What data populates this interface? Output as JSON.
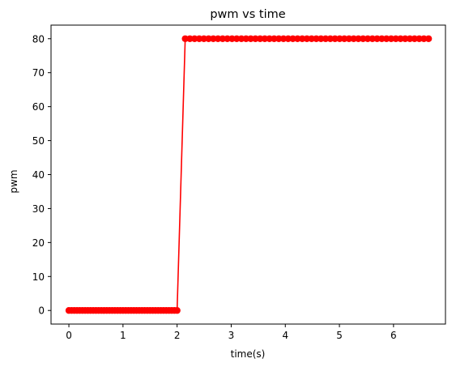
{
  "chart_data": {
    "type": "line",
    "title": "pwm vs time",
    "xlabel": "time(s)",
    "ylabel": "pwm",
    "xlim": [
      -0.33,
      6.96
    ],
    "ylim": [
      -4,
      84
    ],
    "xticks": [
      0,
      1,
      2,
      3,
      4,
      5,
      6
    ],
    "yticks": [
      0,
      10,
      20,
      30,
      40,
      50,
      60,
      70,
      80
    ],
    "grid": false,
    "colors": {
      "series": "#ff0000"
    },
    "series": [
      {
        "marker": "o",
        "segments": [
          {
            "x_start": 0.0,
            "x_end": 2.0,
            "x_step": 0.05,
            "y": 0
          },
          {
            "x_start": 2.15,
            "x_end": 6.65,
            "x_step": 0.0865,
            "y": 80
          }
        ]
      }
    ]
  }
}
